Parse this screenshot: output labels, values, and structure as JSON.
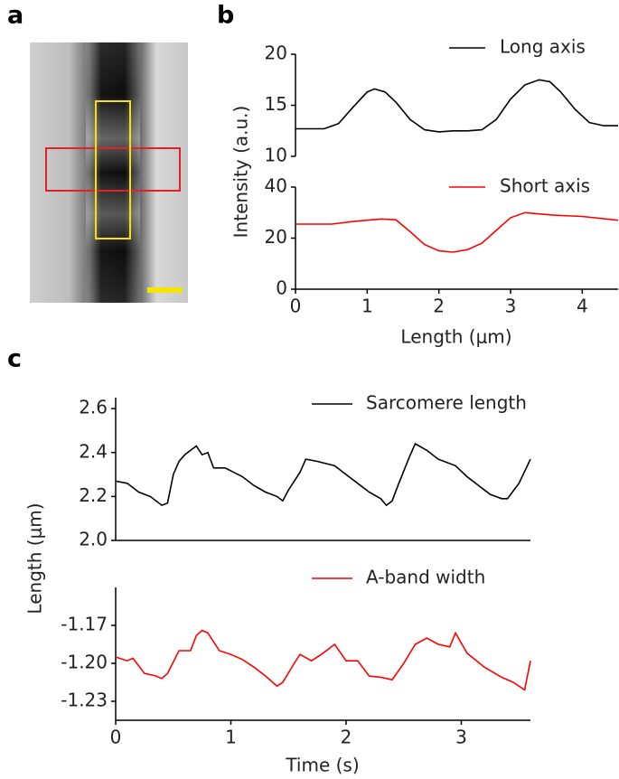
{
  "panel_labels": [
    "a",
    "b",
    "c"
  ],
  "chart_data": [
    {
      "type": "line",
      "ylabel": "Intensity (a.u.)",
      "x": [
        0,
        0.4,
        0.6,
        0.8,
        1.0,
        1.1,
        1.25,
        1.4,
        1.6,
        1.8,
        2.0,
        2.2,
        2.4,
        2.6,
        2.8,
        3.0,
        3.2,
        3.4,
        3.55,
        3.7,
        3.9,
        4.1,
        4.3,
        4.5
      ],
      "series": [
        {
          "name": "Long axis",
          "color": "#000000",
          "values": [
            12.7,
            12.7,
            13.2,
            14.8,
            16.3,
            16.6,
            16.3,
            15.3,
            13.6,
            12.6,
            12.4,
            12.5,
            12.5,
            12.6,
            13.6,
            15.6,
            17.0,
            17.5,
            17.3,
            16.3,
            14.6,
            13.3,
            13.0,
            13.0
          ]
        }
      ],
      "xlim": [
        0,
        4.5
      ],
      "ylim": [
        10,
        20
      ],
      "yticks": [
        10,
        15,
        20
      ]
    },
    {
      "type": "line",
      "xlabel": "Length (μm)",
      "x": [
        0,
        0.5,
        0.8,
        1.2,
        1.4,
        1.6,
        1.8,
        2.0,
        2.2,
        2.4,
        2.6,
        2.8,
        3.0,
        3.2,
        3.4,
        3.6,
        4.0,
        4.5
      ],
      "series": [
        {
          "name": "Short axis",
          "color": "#ff0000",
          "values": [
            25.5,
            25.5,
            26.5,
            27.5,
            27.2,
            22.5,
            17.5,
            15,
            14.5,
            15.5,
            18,
            23,
            28,
            30,
            29.5,
            29,
            28.5,
            27
          ]
        }
      ],
      "xlim": [
        0,
        4.5
      ],
      "ylim": [
        0,
        40
      ],
      "yticks": [
        0,
        20,
        40
      ],
      "xticks": [
        0,
        1,
        2,
        3,
        4
      ]
    },
    {
      "type": "line",
      "ylabel": "Length (μm)",
      "x": [
        0,
        0.1,
        0.2,
        0.3,
        0.4,
        0.45,
        0.5,
        0.55,
        0.6,
        0.65,
        0.7,
        0.75,
        0.8,
        0.85,
        0.95,
        1.1,
        1.2,
        1.3,
        1.4,
        1.45,
        1.5,
        1.6,
        1.65,
        1.75,
        1.9,
        2.0,
        2.1,
        2.2,
        2.3,
        2.35,
        2.4,
        2.45,
        2.55,
        2.6,
        2.7,
        2.8,
        2.95,
        3.05,
        3.15,
        3.25,
        3.35,
        3.4,
        3.5,
        3.6
      ],
      "series": [
        {
          "name": "Sarcomere length",
          "color": "#000000",
          "values": [
            2.27,
            2.26,
            2.22,
            2.2,
            2.16,
            2.17,
            2.3,
            2.36,
            2.39,
            2.41,
            2.43,
            2.39,
            2.4,
            2.33,
            2.33,
            2.29,
            2.25,
            2.22,
            2.2,
            2.18,
            2.23,
            2.31,
            2.37,
            2.36,
            2.34,
            2.3,
            2.26,
            2.22,
            2.19,
            2.16,
            2.18,
            2.25,
            2.38,
            2.44,
            2.41,
            2.37,
            2.34,
            2.29,
            2.25,
            2.21,
            2.19,
            2.19,
            2.26,
            2.37
          ]
        }
      ],
      "xlim": [
        0,
        3.6
      ],
      "ylim": [
        2.0,
        2.65
      ],
      "yticks": [
        {
          "value": 2,
          "label": "2.0"
        },
        2.2,
        2.4,
        2.6
      ]
    },
    {
      "type": "line",
      "xlabel": "Time (s)",
      "x": [
        0,
        0.1,
        0.15,
        0.25,
        0.35,
        0.4,
        0.45,
        0.55,
        0.65,
        0.7,
        0.75,
        0.8,
        0.9,
        1.0,
        1.1,
        1.2,
        1.3,
        1.4,
        1.45,
        1.55,
        1.6,
        1.7,
        1.8,
        1.9,
        2.0,
        2.1,
        2.2,
        2.3,
        2.4,
        2.5,
        2.6,
        2.7,
        2.8,
        2.9,
        2.95,
        3.05,
        3.2,
        3.35,
        3.45,
        3.55,
        3.6
      ],
      "series": [
        {
          "name": "A-band width",
          "color": "#ff0000",
          "values": [
            -1.195,
            -1.198,
            -1.196,
            -1.208,
            -1.21,
            -1.212,
            -1.208,
            -1.19,
            -1.19,
            -1.178,
            -1.174,
            -1.176,
            -1.19,
            -1.193,
            -1.197,
            -1.203,
            -1.21,
            -1.218,
            -1.215,
            -1.2,
            -1.193,
            -1.198,
            -1.192,
            -1.185,
            -1.198,
            -1.198,
            -1.21,
            -1.211,
            -1.213,
            -1.2,
            -1.185,
            -1.18,
            -1.185,
            -1.187,
            -1.176,
            -1.192,
            -1.203,
            -1.211,
            -1.215,
            -1.221,
            -1.198
          ]
        }
      ],
      "xlim": [
        0,
        3.6
      ],
      "ylim": [
        -1.245,
        -1.14
      ],
      "yticks": [
        -1.17,
        {
          "value": -1.2,
          "label": "-1.20"
        },
        -1.23
      ],
      "xticks": [
        0,
        1,
        2,
        3
      ]
    }
  ]
}
